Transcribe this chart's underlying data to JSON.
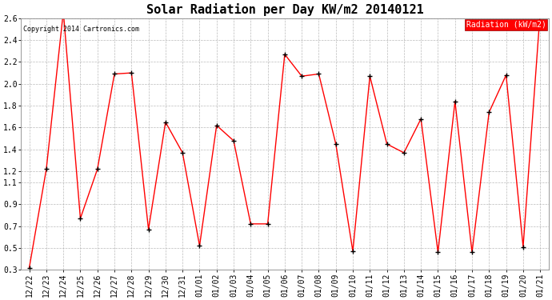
{
  "title": "Solar Radiation per Day KW/m2 20140121",
  "copyright": "Copyright 2014 Cartronics.com",
  "legend_label": "Radiation (kW/m2)",
  "labels": [
    "12/22",
    "12/23",
    "12/24",
    "12/25",
    "12/26",
    "12/27",
    "12/28",
    "12/29",
    "12/30",
    "12/31",
    "01/01",
    "01/02",
    "01/03",
    "01/04",
    "01/05",
    "01/06",
    "01/07",
    "01/08",
    "01/09",
    "01/10",
    "01/11",
    "01/12",
    "01/13",
    "01/14",
    "01/15",
    "01/16",
    "01/17",
    "01/18",
    "01/19",
    "01/20",
    "01/21"
  ],
  "values": [
    0.32,
    1.22,
    2.66,
    0.77,
    1.22,
    2.09,
    2.1,
    0.67,
    1.65,
    1.37,
    0.52,
    1.62,
    1.48,
    0.72,
    0.72,
    2.27,
    2.07,
    2.09,
    1.45,
    0.47,
    2.07,
    1.45,
    1.37,
    1.68,
    0.46,
    1.84,
    0.46,
    1.74,
    2.08,
    0.51,
    2.65
  ],
  "ylim": [
    0.3,
    2.6
  ],
  "yticks": [
    0.3,
    0.5,
    0.7,
    0.9,
    1.1,
    1.2,
    1.4,
    1.6,
    1.8,
    2.0,
    2.2,
    2.4,
    2.6
  ],
  "line_color": "red",
  "marker_color": "black",
  "background_color": "#ffffff",
  "grid_color": "#aaaaaa",
  "title_fontsize": 11,
  "copyright_fontsize": 6,
  "tick_fontsize": 7,
  "legend_fontsize": 7
}
